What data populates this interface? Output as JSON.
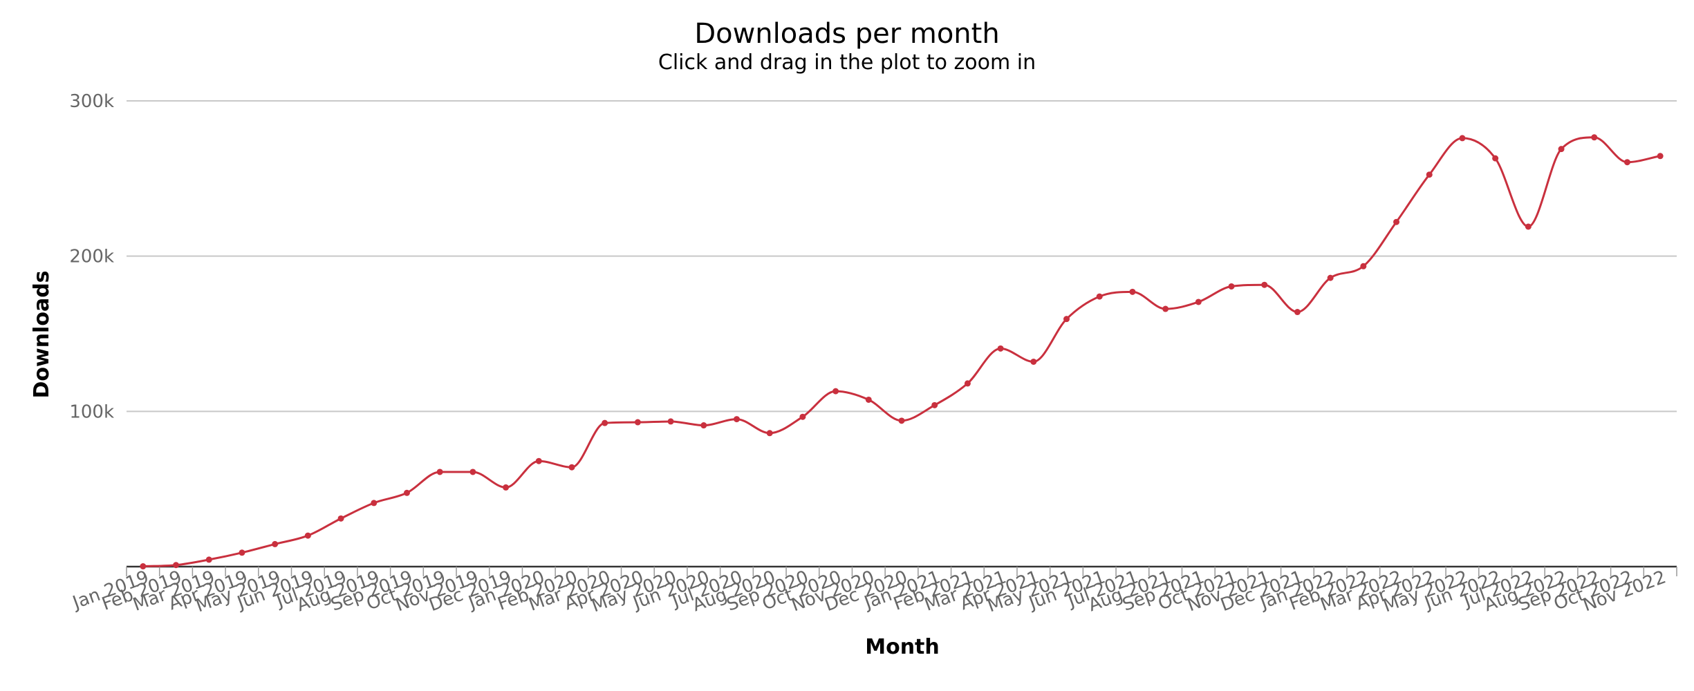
{
  "chart_data": {
    "type": "line",
    "title": "Downloads per month",
    "subtitle": "Click and drag in the plot to zoom in",
    "xlabel": "Month",
    "ylabel": "Downloads",
    "ylim": [
      0,
      300000
    ],
    "yticks": [
      {
        "value": 100000,
        "label": "100k"
      },
      {
        "value": 200000,
        "label": "200k"
      },
      {
        "value": 300000,
        "label": "300k"
      }
    ],
    "grid": true,
    "legend": "none",
    "colors": {
      "line": "#c9303e",
      "text": "#666666"
    },
    "categories": [
      "Jan 2019",
      "Feb 2019",
      "Mar 2019",
      "Apr 2019",
      "May 2019",
      "Jun 2019",
      "Jul 2019",
      "Aug 2019",
      "Sep 2019",
      "Oct 2019",
      "Nov 2019",
      "Dec 2019",
      "Jan 2020",
      "Feb 2020",
      "Mar 2020",
      "Apr 2020",
      "May 2020",
      "Jun 2020",
      "Jul 2020",
      "Aug 2020",
      "Sep 2020",
      "Oct 2020",
      "Nov 2020",
      "Dec 2020",
      "Jan 2021",
      "Feb 2021",
      "Mar 2021",
      "Apr 2021",
      "May 2021",
      "Jun 2021",
      "Jul 2021",
      "Aug 2021",
      "Sep 2021",
      "Oct 2021",
      "Nov 2021",
      "Dec 2021",
      "Jan 2022",
      "Feb 2022",
      "Mar 2022",
      "Apr 2022",
      "May 2022",
      "Jun 2022",
      "Jul 2022",
      "Aug 2022",
      "Sep 2022",
      "Oct 2022",
      "Nov 2022"
    ],
    "series": [
      {
        "values": [
          200,
          1000,
          4500,
          9000,
          14500,
          20000,
          31000,
          41000,
          47500,
          61000,
          61000,
          51000,
          68000,
          64000,
          92500,
          93000,
          93500,
          91000,
          95000,
          86000,
          96500,
          113000,
          107500,
          94000,
          104000,
          118000,
          140500,
          132000,
          159500,
          174000,
          177000,
          166000,
          170500,
          180500,
          181500,
          164000,
          186000,
          193500,
          222000,
          252500,
          276000,
          263000,
          219000,
          269000,
          276500,
          260500,
          264500
        ]
      }
    ]
  }
}
